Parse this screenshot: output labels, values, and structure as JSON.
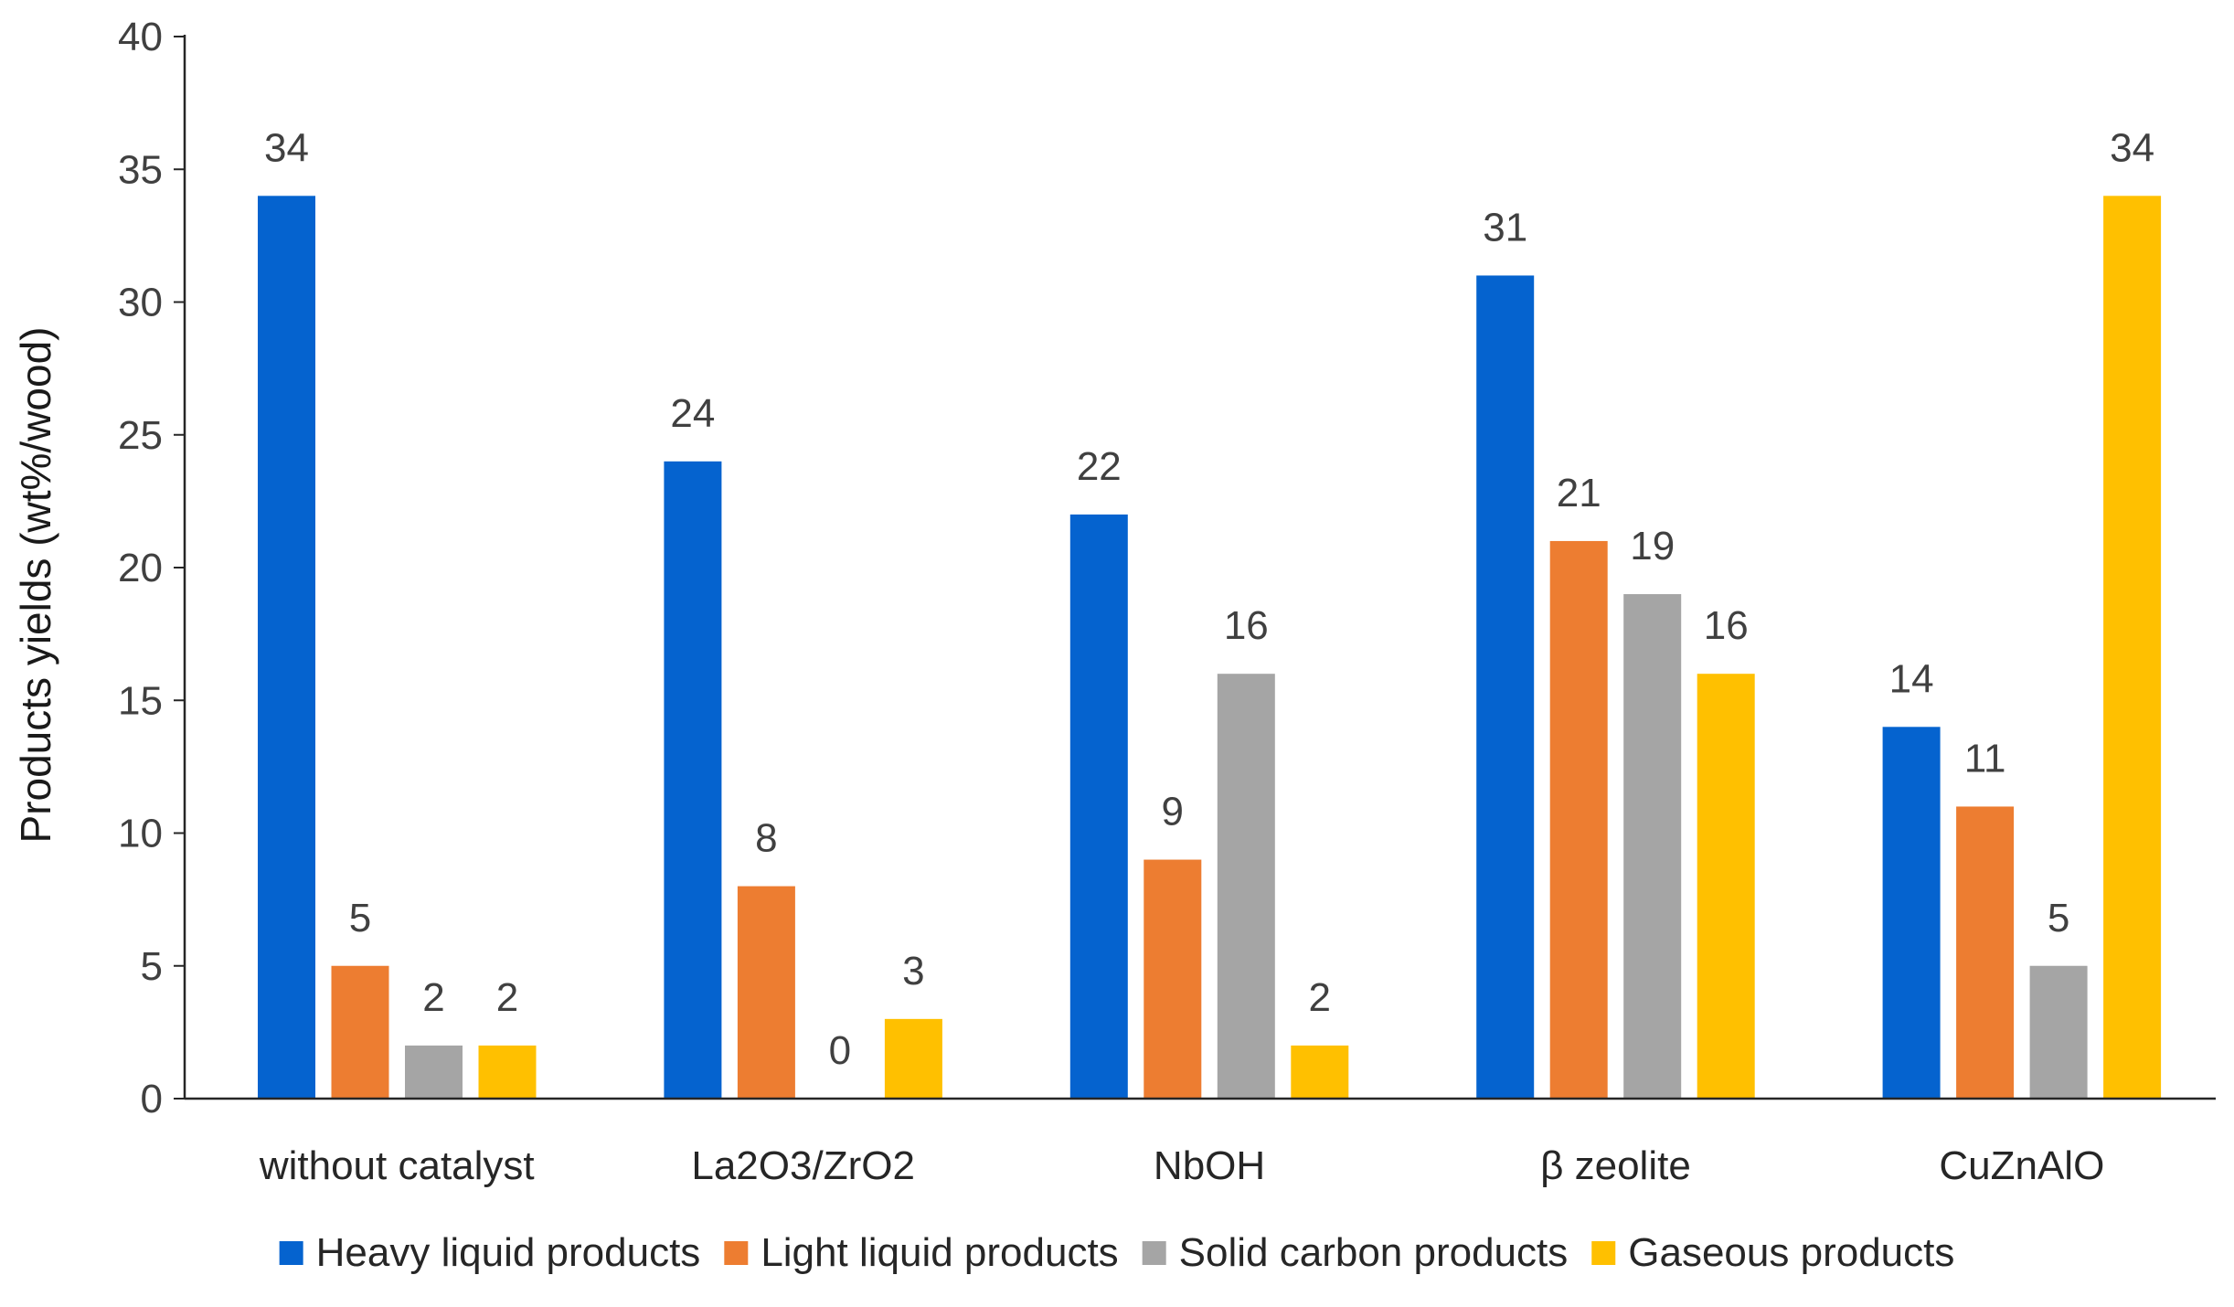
{
  "chart_data": {
    "type": "bar",
    "title": "",
    "xlabel": "",
    "ylabel": "Products yields (wt%/wood)",
    "ylim": [
      0,
      40
    ],
    "yticks": [
      0,
      5,
      10,
      15,
      20,
      25,
      30,
      35,
      40
    ],
    "grid": false,
    "legend_position": "bottom",
    "categories": [
      "without catalyst",
      "La2O3/ZrO2",
      "NbOH",
      "β zeolite",
      "CuZnAlO"
    ],
    "series": [
      {
        "name": "Heavy liquid products",
        "color": "#0563CF",
        "values": [
          34,
          24,
          22,
          31,
          14
        ]
      },
      {
        "name": "Light liquid products",
        "color": "#ED7D31",
        "values": [
          5,
          8,
          9,
          21,
          11
        ]
      },
      {
        "name": "Solid carbon products",
        "color": "#A5A5A5",
        "values": [
          2,
          0,
          16,
          19,
          5
        ]
      },
      {
        "name": "Gaseous products",
        "color": "#FFC000",
        "values": [
          2,
          3,
          2,
          16,
          34
        ]
      }
    ]
  }
}
